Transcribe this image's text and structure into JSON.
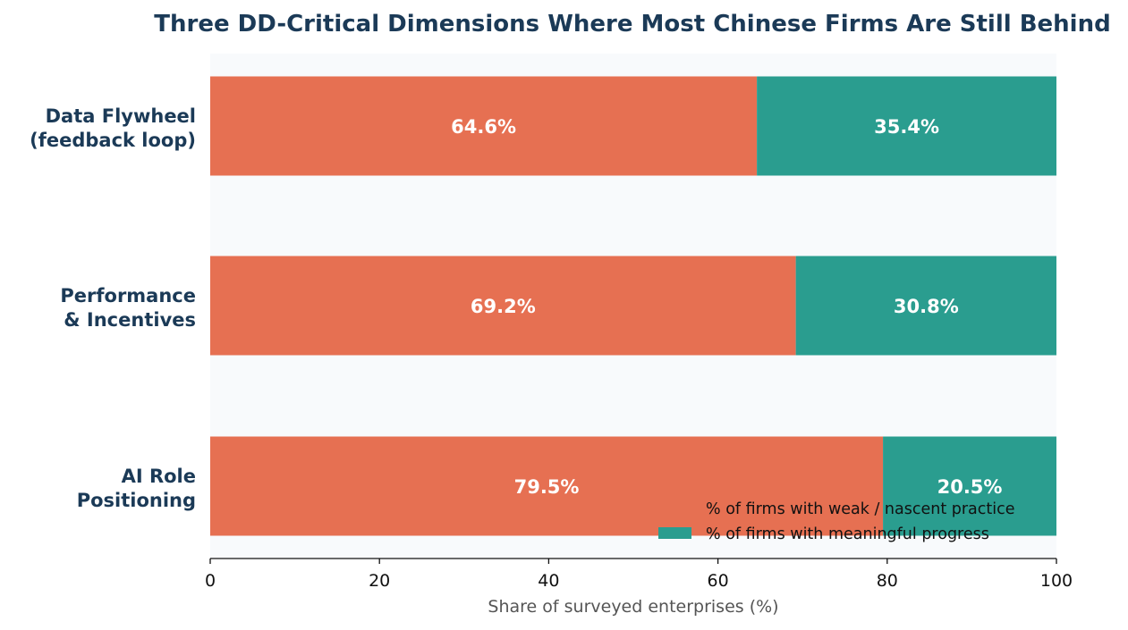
{
  "chart_data": {
    "type": "bar",
    "orientation": "horizontal",
    "stacked": true,
    "title": "Three DD-Critical Dimensions Where Most Chinese Firms Are Still Behind",
    "xlabel": "Share of surveyed enterprises (%)",
    "ylabel": "",
    "xlim": [
      0,
      100
    ],
    "xticks": [
      "0",
      "20",
      "40",
      "60",
      "80",
      "100"
    ],
    "categories": [
      [
        "Data Flywheel",
        "(feedback loop)"
      ],
      [
        "Performance",
        "& Incentives"
      ],
      [
        "AI Role",
        "Positioning"
      ]
    ],
    "series": [
      {
        "name": "% of firms with weak / nascent practice",
        "color": "#e67052",
        "values": [
          64.6,
          69.2,
          79.5
        ],
        "labels": [
          "64.6%",
          "69.2%",
          "79.5%"
        ]
      },
      {
        "name": "% of firms with meaningful progress",
        "color": "#2a9d8f",
        "values": [
          35.4,
          30.8,
          20.5
        ],
        "labels": [
          "35.4%",
          "30.8%",
          "20.5%"
        ]
      }
    ],
    "legend_position": "lower-right",
    "grid": false,
    "plot_background": "#f8fafc"
  }
}
